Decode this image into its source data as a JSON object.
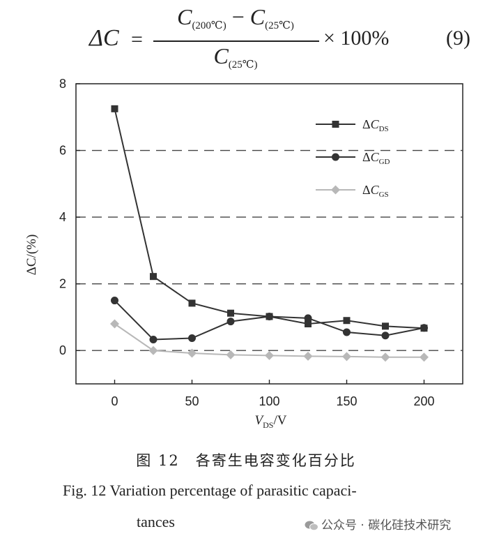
{
  "formula": {
    "delta": "ΔC",
    "equals": "=",
    "numerator_c1": "C",
    "numerator_sub1": "(200℃)",
    "minus": "−",
    "numerator_c2": "C",
    "numerator_sub2": "(25℃)",
    "denominator_c": "C",
    "denominator_sub": "(25℃)",
    "times": "× 100%",
    "equation_number": "(9)"
  },
  "chart_data": {
    "type": "line",
    "x": [
      0,
      25,
      50,
      75,
      100,
      125,
      150,
      175,
      200
    ],
    "xlabel": "V",
    "xlabel_sub": "DS",
    "xlabel_unit": "/V",
    "ylabel": "ΔC/(%)",
    "xlim": [
      -25,
      225
    ],
    "ylim": [
      -1,
      8
    ],
    "xticks": [
      "0",
      "50",
      "100",
      "150",
      "200"
    ],
    "xtick_values": [
      0,
      50,
      100,
      150,
      200
    ],
    "yticks": [
      "0",
      "2",
      "4",
      "6",
      "8"
    ],
    "ytick_values": [
      0,
      2,
      4,
      6,
      8
    ],
    "grid": "dashed horizontal",
    "legend_position": "top-right",
    "series": [
      {
        "name": "ΔC",
        "sub": "DS",
        "marker": "square",
        "color": "#333333",
        "values": [
          7.25,
          2.22,
          1.42,
          1.12,
          1.02,
          0.8,
          0.9,
          0.73,
          0.67
        ]
      },
      {
        "name": "ΔC",
        "sub": "GD",
        "marker": "circle",
        "color": "#333333",
        "values": [
          1.5,
          0.33,
          0.37,
          0.87,
          1.02,
          0.97,
          0.55,
          0.45,
          0.68
        ]
      },
      {
        "name": "ΔC",
        "sub": "GS",
        "marker": "diamond",
        "color": "#b8b8b8",
        "values": [
          0.8,
          0.0,
          -0.08,
          -0.13,
          -0.15,
          -0.17,
          -0.18,
          -0.2,
          -0.2
        ]
      }
    ]
  },
  "caption": {
    "cn": "图 12　各寄生电容变化百分比",
    "en_line1": "Fig. 12    Variation percentage of parasitic capaci-",
    "en_line2": "tances"
  },
  "watermark": {
    "text": "公众号 · 碳化硅技术研究"
  }
}
